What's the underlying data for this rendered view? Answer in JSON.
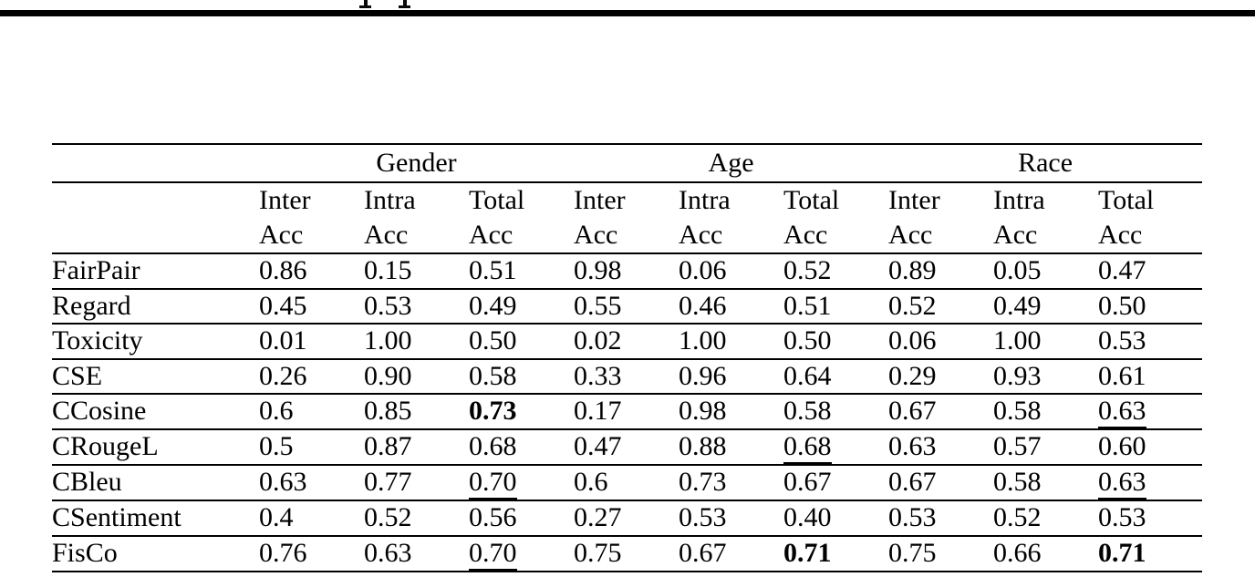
{
  "page": {
    "background_color": "#ffffff",
    "rule_color": "#000000",
    "clipped_top_text_marks": 2
  },
  "table": {
    "corner_label": "",
    "groups": [
      {
        "label": "Gender"
      },
      {
        "label": "Age"
      },
      {
        "label": "Race"
      }
    ],
    "sub_columns": [
      {
        "line1": "Inter",
        "line2": "Acc"
      },
      {
        "line1": "Intra",
        "line2": "Acc"
      },
      {
        "line1": "Total",
        "line2": "Acc"
      }
    ],
    "rows": [
      {
        "label": "FairPair",
        "values": [
          {
            "text": "0.86"
          },
          {
            "text": "0.15"
          },
          {
            "text": "0.51"
          },
          {
            "text": "0.98"
          },
          {
            "text": "0.06"
          },
          {
            "text": "0.52"
          },
          {
            "text": "0.89"
          },
          {
            "text": "0.05"
          },
          {
            "text": "0.47"
          }
        ]
      },
      {
        "label": "Regard",
        "values": [
          {
            "text": "0.45"
          },
          {
            "text": "0.53"
          },
          {
            "text": "0.49"
          },
          {
            "text": "0.55"
          },
          {
            "text": "0.46"
          },
          {
            "text": "0.51"
          },
          {
            "text": "0.52"
          },
          {
            "text": "0.49"
          },
          {
            "text": "0.50"
          }
        ]
      },
      {
        "label": "Toxicity",
        "values": [
          {
            "text": "0.01"
          },
          {
            "text": "1.00"
          },
          {
            "text": "0.50"
          },
          {
            "text": "0.02"
          },
          {
            "text": "1.00"
          },
          {
            "text": "0.50"
          },
          {
            "text": "0.06"
          },
          {
            "text": "1.00"
          },
          {
            "text": "0.53"
          }
        ]
      },
      {
        "label": "CSE",
        "values": [
          {
            "text": "0.26"
          },
          {
            "text": "0.90"
          },
          {
            "text": "0.58"
          },
          {
            "text": "0.33"
          },
          {
            "text": "0.96"
          },
          {
            "text": "0.64"
          },
          {
            "text": "0.29"
          },
          {
            "text": "0.93"
          },
          {
            "text": "0.61"
          }
        ]
      },
      {
        "label": "CCosine",
        "values": [
          {
            "text": "0.6"
          },
          {
            "text": "0.85"
          },
          {
            "text": "0.73",
            "style": "bold"
          },
          {
            "text": "0.17"
          },
          {
            "text": "0.98"
          },
          {
            "text": "0.58"
          },
          {
            "text": "0.67"
          },
          {
            "text": "0.58"
          },
          {
            "text": "0.63",
            "style": "underline"
          }
        ]
      },
      {
        "label": "CRougeL",
        "values": [
          {
            "text": "0.5"
          },
          {
            "text": "0.87"
          },
          {
            "text": "0.68"
          },
          {
            "text": "0.47"
          },
          {
            "text": "0.88"
          },
          {
            "text": "0.68",
            "style": "underline"
          },
          {
            "text": "0.63"
          },
          {
            "text": "0.57"
          },
          {
            "text": "0.60"
          }
        ]
      },
      {
        "label": "CBleu",
        "values": [
          {
            "text": "0.63"
          },
          {
            "text": "0.77"
          },
          {
            "text": "0.70",
            "style": "underline"
          },
          {
            "text": "0.6"
          },
          {
            "text": "0.73"
          },
          {
            "text": "0.67"
          },
          {
            "text": "0.67"
          },
          {
            "text": "0.58"
          },
          {
            "text": "0.63",
            "style": "underline"
          }
        ]
      },
      {
        "label": "CSentiment",
        "values": [
          {
            "text": "0.4"
          },
          {
            "text": "0.52"
          },
          {
            "text": "0.56"
          },
          {
            "text": "0.27"
          },
          {
            "text": "0.53"
          },
          {
            "text": "0.40"
          },
          {
            "text": "0.53"
          },
          {
            "text": "0.52"
          },
          {
            "text": "0.53"
          }
        ]
      },
      {
        "label": "FisCo",
        "values": [
          {
            "text": "0.76"
          },
          {
            "text": "0.63"
          },
          {
            "text": "0.70",
            "style": "underline"
          },
          {
            "text": "0.75"
          },
          {
            "text": "0.67"
          },
          {
            "text": "0.71",
            "style": "bold"
          },
          {
            "text": "0.75"
          },
          {
            "text": "0.66"
          },
          {
            "text": "0.71",
            "style": "bold"
          }
        ]
      }
    ]
  }
}
